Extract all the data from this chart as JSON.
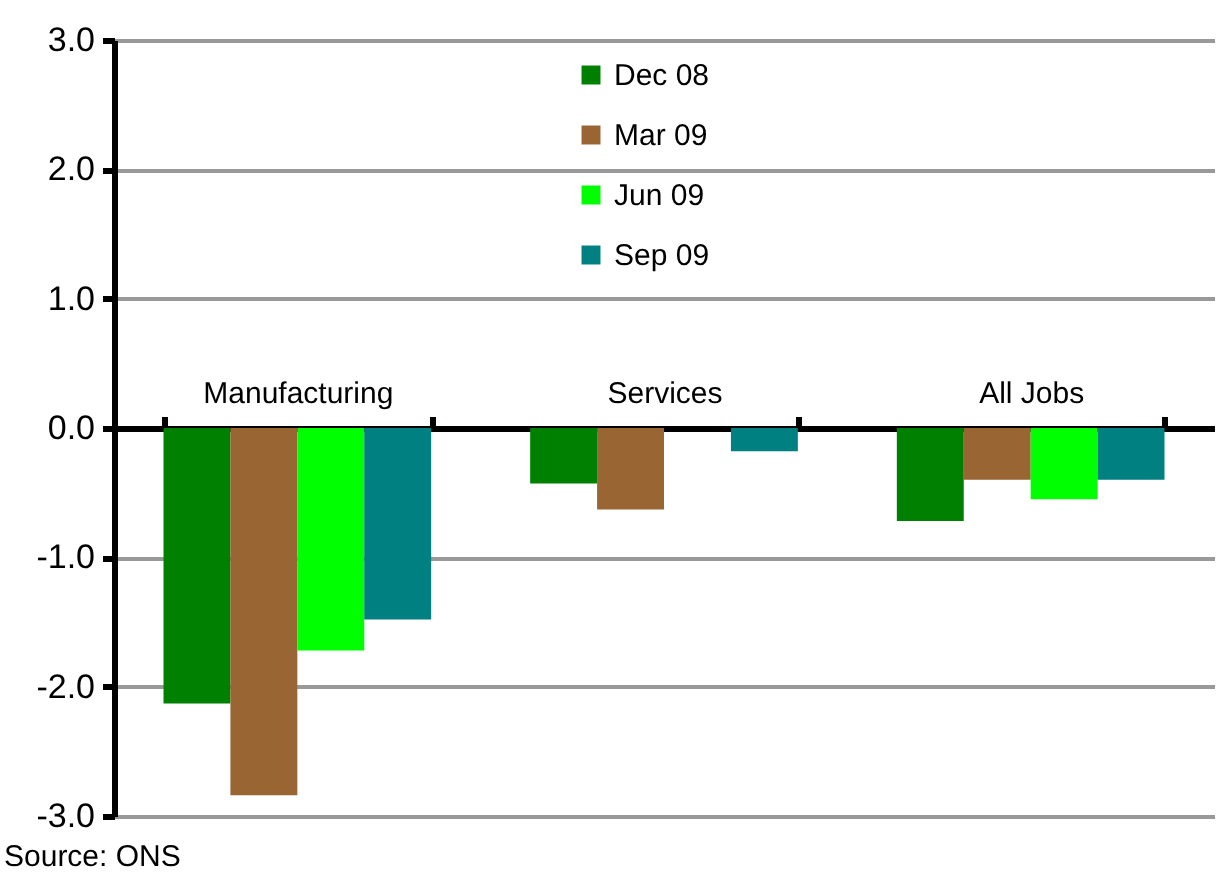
{
  "chart_data": {
    "type": "bar",
    "categories": [
      "Manufacturing",
      "Services",
      "All Jobs"
    ],
    "series": [
      {
        "name": "Dec 08",
        "color": "#008000",
        "values": [
          -2.13,
          -0.43,
          -0.72
        ]
      },
      {
        "name": "Mar 09",
        "color": "#996633",
        "values": [
          -2.84,
          -0.63,
          -0.4
        ]
      },
      {
        "name": "Jun 09",
        "color": "#00ff00",
        "values": [
          -1.72,
          0,
          -0.55
        ]
      },
      {
        "name": "Sep 09",
        "color": "#008080",
        "values": [
          -1.48,
          -0.18,
          -0.4
        ]
      }
    ],
    "ylim": [
      -3,
      3
    ],
    "yticks": [
      {
        "value": -3,
        "label": "-3.0"
      },
      {
        "value": -2,
        "label": "-2.0"
      },
      {
        "value": -1,
        "label": "-1.0"
      },
      {
        "value": 0,
        "label": "0.0"
      },
      {
        "value": 1,
        "label": "1.0"
      },
      {
        "value": 2,
        "label": "2.0"
      },
      {
        "value": 3,
        "label": "3.0"
      }
    ],
    "grid": "y",
    "legend": "top",
    "annotations": [
      "Source: ONS"
    ]
  }
}
